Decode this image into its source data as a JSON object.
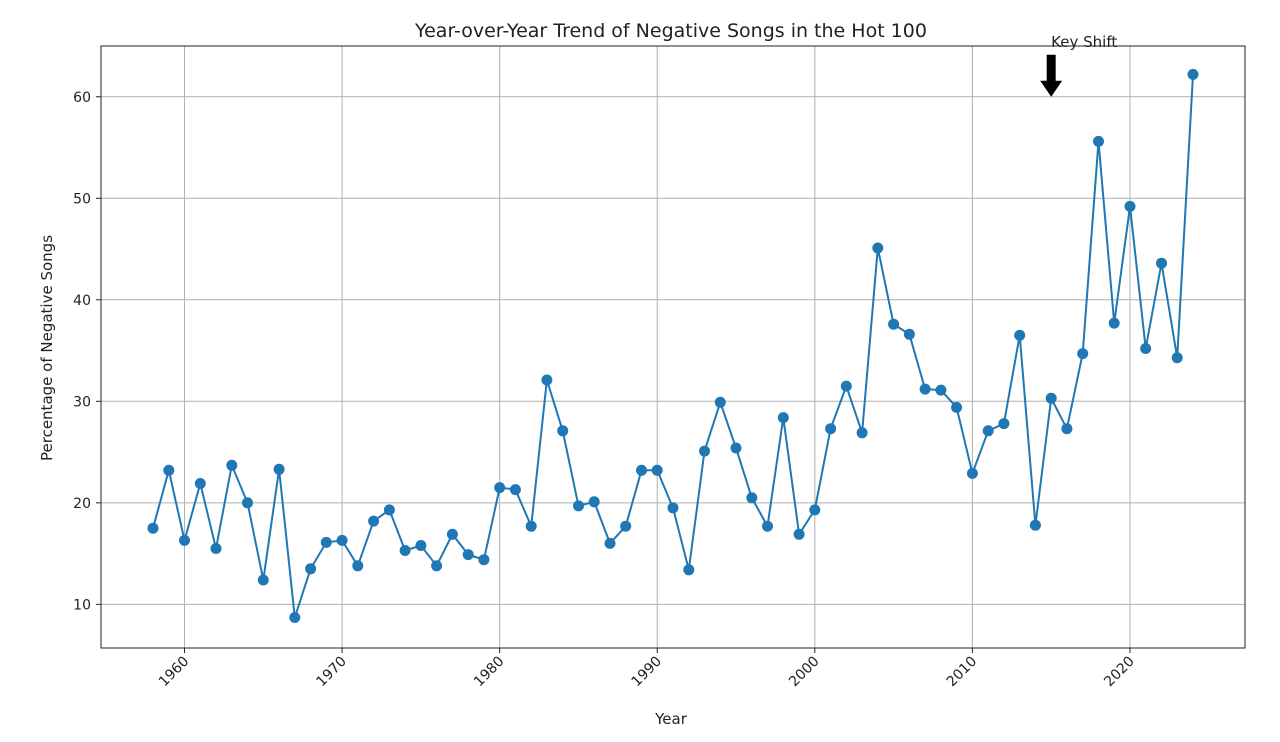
{
  "chart_data": {
    "type": "line",
    "title": "Year-over-Year Trend of Negative Songs in the Hot 100",
    "xlabel": "Year",
    "ylabel": "Percentage of Negative Songs",
    "xlim": [
      1954.7,
      2027.3
    ],
    "ylim": [
      5.7,
      65
    ],
    "xticks": [
      1960,
      1970,
      1980,
      1990,
      2000,
      2010,
      2020
    ],
    "yticks": [
      10,
      20,
      30,
      40,
      50,
      60
    ],
    "grid": true,
    "series_color": "#1f77b4",
    "annotation": {
      "text": "Key Shift",
      "x": 2015,
      "y": 60
    },
    "series": [
      {
        "x": [
          1958,
          1959,
          1960,
          1961,
          1962,
          1963,
          1964,
          1965,
          1966,
          1967,
          1968,
          1969,
          1970,
          1971,
          1972,
          1973,
          1974,
          1975,
          1976,
          1977,
          1978,
          1979,
          1980,
          1981,
          1982,
          1983,
          1984,
          1985,
          1986,
          1987,
          1988,
          1989,
          1990,
          1991,
          1992,
          1993,
          1994,
          1995,
          1996,
          1997,
          1998,
          1999,
          2000,
          2001,
          2002,
          2003,
          2004,
          2005,
          2006,
          2007,
          2008,
          2009,
          2010,
          2011,
          2012,
          2013,
          2014,
          2015,
          2016,
          2017,
          2018,
          2019,
          2020,
          2021,
          2022,
          2023,
          2024
        ],
        "values": [
          17.5,
          23.2,
          16.3,
          21.9,
          15.5,
          23.7,
          20.0,
          12.4,
          23.3,
          8.7,
          13.5,
          16.1,
          16.3,
          13.8,
          18.2,
          19.3,
          15.3,
          15.8,
          13.8,
          16.9,
          14.9,
          14.4,
          21.5,
          21.3,
          17.7,
          32.1,
          27.1,
          19.7,
          20.1,
          16.0,
          17.7,
          23.2,
          23.2,
          19.5,
          13.4,
          25.1,
          29.9,
          25.4,
          20.5,
          17.7,
          28.4,
          16.9,
          19.3,
          27.3,
          31.5,
          26.9,
          45.1,
          37.6,
          36.6,
          31.2,
          31.1,
          29.4,
          22.9,
          27.1,
          27.8,
          36.5,
          17.8,
          30.3,
          27.3,
          34.7,
          55.6,
          37.7,
          49.2,
          35.2,
          43.6,
          34.3,
          62.2
        ]
      }
    ]
  }
}
